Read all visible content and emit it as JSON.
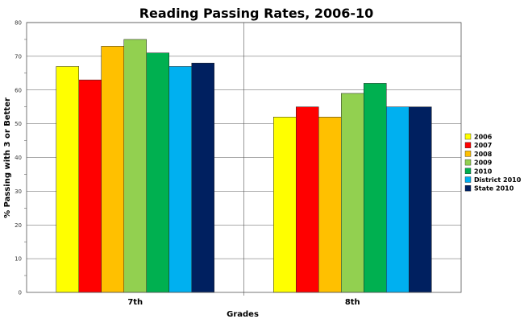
{
  "chart_data": {
    "type": "bar",
    "title": "Reading Passing Rates, 2006-10",
    "xlabel": "Grades",
    "ylabel": "% Passing with 3 or Better",
    "ylim": [
      0,
      80
    ],
    "yticks": [
      0,
      10,
      20,
      30,
      40,
      50,
      60,
      70,
      80
    ],
    "grid": true,
    "legend_position": "right",
    "categories": [
      "7th",
      "8th"
    ],
    "series": [
      {
        "name": "2006",
        "color": "#ffff00",
        "values": [
          67,
          52
        ]
      },
      {
        "name": "2007",
        "color": "#ff0000",
        "values": [
          63,
          55
        ]
      },
      {
        "name": "2008",
        "color": "#ffc000",
        "values": [
          73,
          52
        ]
      },
      {
        "name": "2009",
        "color": "#92d050",
        "values": [
          75,
          59
        ]
      },
      {
        "name": "2010",
        "color": "#00b050",
        "values": [
          71,
          62
        ]
      },
      {
        "name": "District 2010",
        "color": "#00b0f0",
        "values": [
          67,
          55
        ]
      },
      {
        "name": "State 2010",
        "color": "#002060",
        "values": [
          68,
          55
        ]
      }
    ]
  }
}
